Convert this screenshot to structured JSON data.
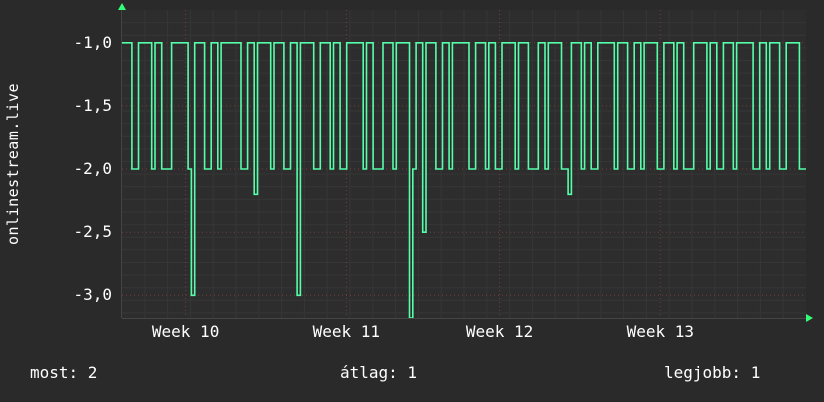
{
  "colors": {
    "background": "#2a2a2a",
    "plot_background": "#2d2d2d",
    "text": "#ffffff",
    "line": "#55ffaa",
    "accent": "#33ff77",
    "grid_major": "rgba(205,85,85,0.45)",
    "grid_minor": "#363636"
  },
  "stats": {
    "now": "most: 2",
    "avg": "átlag: 1",
    "best": "legjobb: 1"
  },
  "chart_data": {
    "type": "line",
    "step": true,
    "title": "",
    "xlabel": "",
    "ylabel": "onlinestream.live",
    "legend": "none",
    "grid": "on",
    "ylim": [
      -3.18,
      -0.74
    ],
    "yticks": [
      {
        "label": "-1,0",
        "value": -1.0
      },
      {
        "label": "-1,5",
        "value": -1.5
      },
      {
        "label": "-2,0",
        "value": -2.0
      },
      {
        "label": "-2,5",
        "value": -2.5
      },
      {
        "label": "-3,0",
        "value": -3.0
      }
    ],
    "xticks": [
      {
        "label": "Week 10",
        "pos": 0.093
      },
      {
        "label": "Week 11",
        "pos": 0.328
      },
      {
        "label": "Week 12",
        "pos": 0.552
      },
      {
        "label": "Week 13",
        "pos": 0.787
      }
    ],
    "samples": [
      -1,
      -1,
      -1,
      -2,
      -2,
      -1,
      -1,
      -1,
      -1,
      -2,
      -1,
      -1,
      -2,
      -2,
      -2,
      -1,
      -1,
      -1,
      -1,
      -1,
      -2,
      -3,
      -1,
      -1,
      -1,
      -2,
      -2,
      -1,
      -1,
      -2,
      -1,
      -1,
      -1,
      -1,
      -1,
      -1,
      -2,
      -2,
      -1,
      -1,
      -2.2,
      -1,
      -1,
      -1,
      -1,
      -2,
      -1,
      -1,
      -1,
      -2,
      -2,
      -1,
      -1,
      -3,
      -1,
      -1,
      -1,
      -1,
      -2,
      -2,
      -1,
      -1,
      -1,
      -2,
      -1,
      -1,
      -2,
      -2,
      -1,
      -1,
      -1,
      -1,
      -1,
      -2,
      -1,
      -1,
      -2,
      -2,
      -2,
      -1,
      -1,
      -1,
      -2,
      -1,
      -1,
      -1,
      -1,
      -3.2,
      -2,
      -1,
      -1,
      -2.5,
      -1,
      -1,
      -1,
      -2,
      -2,
      -1,
      -1,
      -2,
      -1,
      -1,
      -1,
      -1,
      -1,
      -2,
      -2,
      -1,
      -1,
      -1,
      -2,
      -1,
      -1,
      -2,
      -2,
      -1,
      -1,
      -1,
      -1,
      -2,
      -1,
      -1,
      -1,
      -2,
      -2,
      -2,
      -1,
      -1,
      -2,
      -1,
      -1,
      -1,
      -1,
      -2,
      -2,
      -2.2,
      -1,
      -1,
      -1,
      -2,
      -1,
      -1,
      -2,
      -2,
      -1,
      -1,
      -1,
      -1,
      -1,
      -2,
      -1,
      -1,
      -1,
      -2,
      -2,
      -1,
      -1,
      -2,
      -1,
      -1,
      -1,
      -1,
      -2,
      -2,
      -1,
      -1,
      -1,
      -2,
      -1,
      -1,
      -2,
      -2,
      -2,
      -1,
      -1,
      -1,
      -1,
      -2,
      -1,
      -1,
      -2,
      -2,
      -1,
      -1,
      -1,
      -2,
      -1,
      -1,
      -1,
      -1,
      -1,
      -2,
      -2,
      -1,
      -1,
      -2,
      -1,
      -1,
      -1,
      -2,
      -2,
      -1,
      -1,
      -1,
      -1,
      -2,
      -2
    ]
  }
}
